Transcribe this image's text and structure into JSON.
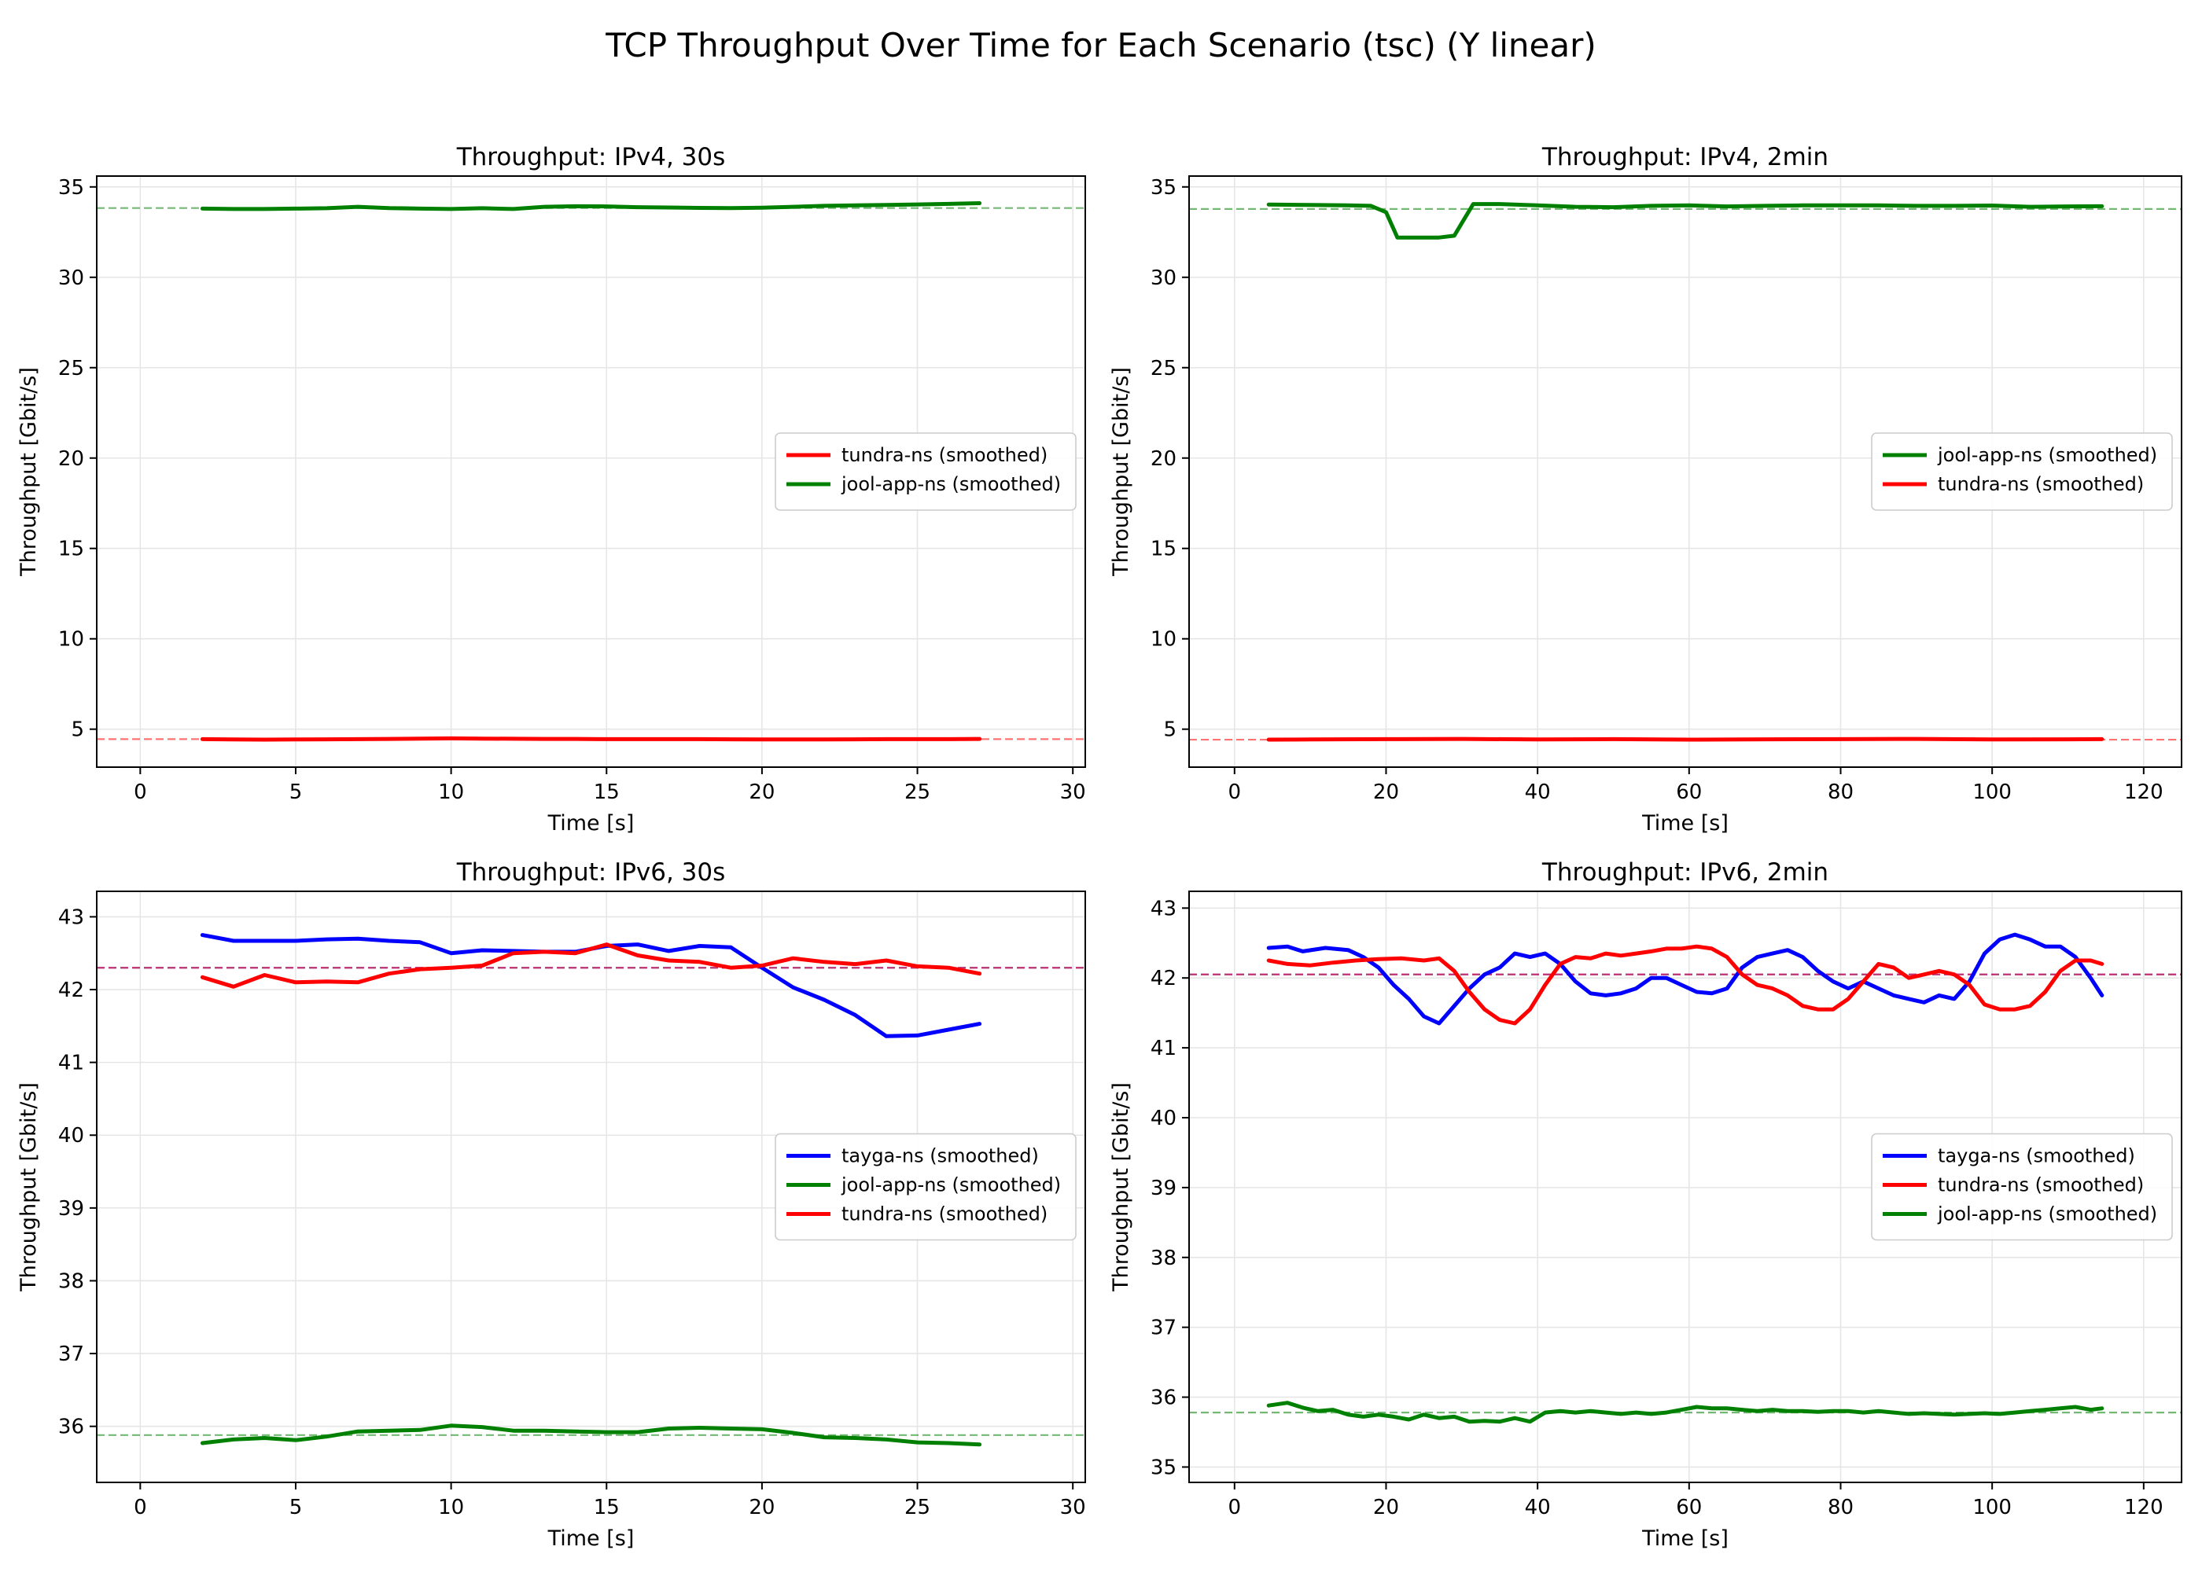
{
  "title": "TCP Throughput Over Time for Each Scenario (tsc) (Y linear)",
  "colors": {
    "tayga-ns": "#0000ff",
    "jool-app-ns": "#008000",
    "tundra-ns": "#ff0000"
  },
  "chart_data": [
    {
      "type": "line",
      "title": "Throughput: IPv4, 30s",
      "xlabel": "Time [s]",
      "ylabel": "Throughput [Gbit/s]",
      "xlim": [
        -1.4,
        30.4
      ],
      "ylim": [
        2.9,
        35.6
      ],
      "xticks": [
        0,
        5,
        10,
        15,
        20,
        25,
        30
      ],
      "yticks": [
        5,
        10,
        15,
        20,
        25,
        30,
        35
      ],
      "grid": true,
      "legend_position": "center-right",
      "series": [
        {
          "name": "tundra-ns (smoothed)",
          "color": "#ff0000",
          "mean": 4.45,
          "x": [
            2,
            3,
            4,
            5,
            6,
            7,
            8,
            9,
            10,
            11,
            12,
            13,
            14,
            15,
            16,
            17,
            18,
            19,
            20,
            21,
            22,
            23,
            24,
            25,
            26,
            27
          ],
          "values": [
            4.45,
            4.43,
            4.42,
            4.43,
            4.44,
            4.45,
            4.46,
            4.48,
            4.49,
            4.48,
            4.47,
            4.46,
            4.46,
            4.45,
            4.45,
            4.45,
            4.45,
            4.44,
            4.43,
            4.43,
            4.43,
            4.44,
            4.45,
            4.45,
            4.45,
            4.46
          ]
        },
        {
          "name": "jool-app-ns (smoothed)",
          "color": "#008000",
          "mean": 33.83,
          "x": [
            2,
            3,
            4,
            5,
            6,
            7,
            8,
            9,
            10,
            11,
            12,
            13,
            14,
            15,
            16,
            17,
            18,
            19,
            20,
            21,
            22,
            23,
            24,
            25,
            26,
            27
          ],
          "values": [
            33.8,
            33.78,
            33.78,
            33.8,
            33.82,
            33.9,
            33.83,
            33.8,
            33.78,
            33.82,
            33.78,
            33.9,
            33.93,
            33.92,
            33.88,
            33.86,
            33.84,
            33.83,
            33.85,
            33.9,
            33.95,
            33.98,
            34.0,
            34.03,
            34.06,
            34.1
          ]
        }
      ]
    },
    {
      "type": "line",
      "title": "Throughput: IPv4, 2min",
      "xlabel": "Time [s]",
      "ylabel": "Throughput [Gbit/s]",
      "xlim": [
        -6,
        125
      ],
      "ylim": [
        2.9,
        35.6
      ],
      "xticks": [
        0,
        20,
        40,
        60,
        80,
        100,
        120
      ],
      "yticks": [
        5,
        10,
        15,
        20,
        25,
        30,
        35
      ],
      "grid": true,
      "legend_position": "center-right",
      "series": [
        {
          "name": "jool-app-ns (smoothed)",
          "color": "#008000",
          "mean": 33.78,
          "x": [
            4.5,
            10,
            15,
            18,
            20,
            21.5,
            24,
            27,
            29,
            30,
            31.5,
            35,
            40,
            45,
            50,
            55,
            60,
            65,
            70,
            75,
            80,
            85,
            90,
            95,
            100,
            105,
            110,
            114.5
          ],
          "values": [
            34.02,
            34.0,
            33.98,
            33.95,
            33.6,
            32.2,
            32.2,
            32.2,
            32.3,
            33.0,
            34.05,
            34.05,
            33.98,
            33.9,
            33.88,
            33.95,
            33.98,
            33.92,
            33.95,
            33.98,
            33.98,
            33.98,
            33.95,
            33.95,
            33.97,
            33.9,
            33.92,
            33.93
          ]
        },
        {
          "name": "tundra-ns (smoothed)",
          "color": "#ff0000",
          "mean": 4.42,
          "x": [
            4.5,
            10,
            20,
            30,
            40,
            50,
            60,
            70,
            80,
            90,
            100,
            110,
            114.5
          ],
          "values": [
            4.42,
            4.43,
            4.45,
            4.46,
            4.43,
            4.45,
            4.42,
            4.44,
            4.45,
            4.46,
            4.43,
            4.44,
            4.45
          ]
        }
      ]
    },
    {
      "type": "line",
      "title": "Throughput: IPv6, 30s",
      "xlabel": "Time [s]",
      "ylabel": "Throughput [Gbit/s]",
      "xlim": [
        -1.4,
        30.4
      ],
      "ylim": [
        35.23,
        43.35
      ],
      "xticks": [
        0,
        5,
        10,
        15,
        20,
        25,
        30
      ],
      "yticks": [
        36,
        37,
        38,
        39,
        40,
        41,
        42,
        43
      ],
      "grid": true,
      "legend_position": "center-right",
      "series": [
        {
          "name": "tayga-ns (smoothed)",
          "color": "#0000ff",
          "mean": 42.3,
          "x": [
            2,
            3,
            4,
            5,
            6,
            7,
            8,
            9,
            10,
            11,
            12,
            13,
            14,
            15,
            16,
            17,
            18,
            19,
            20,
            21,
            22,
            23,
            24,
            25,
            26,
            27
          ],
          "values": [
            42.75,
            42.67,
            42.67,
            42.67,
            42.69,
            42.7,
            42.67,
            42.65,
            42.5,
            42.54,
            42.53,
            42.52,
            42.52,
            42.6,
            42.62,
            42.53,
            42.6,
            42.58,
            42.3,
            42.03,
            41.86,
            41.65,
            41.36,
            41.37,
            41.45,
            41.53
          ]
        },
        {
          "name": "jool-app-ns (smoothed)",
          "color": "#008000",
          "mean": 35.88,
          "x": [
            2,
            3,
            4,
            5,
            6,
            7,
            8,
            9,
            10,
            11,
            12,
            13,
            14,
            15,
            16,
            17,
            18,
            19,
            20,
            21,
            22,
            23,
            24,
            25,
            26,
            27
          ],
          "values": [
            35.77,
            35.82,
            35.84,
            35.81,
            35.86,
            35.93,
            35.94,
            35.95,
            36.01,
            35.99,
            35.94,
            35.94,
            35.93,
            35.92,
            35.92,
            35.97,
            35.98,
            35.97,
            35.96,
            35.91,
            35.85,
            35.84,
            35.82,
            35.78,
            35.77,
            35.75
          ]
        },
        {
          "name": "tundra-ns (smoothed)",
          "color": "#ff0000",
          "mean": 42.3,
          "x": [
            2,
            3,
            4,
            5,
            6,
            7,
            8,
            9,
            10,
            11,
            12,
            13,
            14,
            15,
            16,
            17,
            18,
            19,
            20,
            21,
            22,
            23,
            24,
            25,
            26,
            27
          ],
          "values": [
            42.17,
            42.04,
            42.2,
            42.1,
            42.11,
            42.1,
            42.22,
            42.28,
            42.3,
            42.33,
            42.5,
            42.52,
            42.5,
            42.62,
            42.47,
            42.4,
            42.38,
            42.3,
            42.33,
            42.43,
            42.38,
            42.35,
            42.4,
            42.32,
            42.3,
            42.22
          ]
        }
      ]
    },
    {
      "type": "line",
      "title": "Throughput: IPv6, 2min",
      "xlabel": "Time [s]",
      "ylabel": "Throughput [Gbit/s]",
      "xlim": [
        -6,
        125
      ],
      "ylim": [
        34.78,
        43.24
      ],
      "xticks": [
        0,
        20,
        40,
        60,
        80,
        100,
        120
      ],
      "yticks": [
        35,
        36,
        37,
        38,
        39,
        40,
        41,
        42,
        43
      ],
      "grid": true,
      "legend_position": "center-right",
      "series": [
        {
          "name": "tayga-ns (smoothed)",
          "color": "#0000ff",
          "mean": 42.05,
          "x": [
            4.5,
            7,
            9,
            12,
            15,
            17,
            19,
            21,
            23,
            25,
            27,
            29,
            31,
            33,
            35,
            37,
            39,
            41,
            43,
            45,
            47,
            49,
            51,
            53,
            55,
            57,
            59,
            61,
            63,
            65,
            67,
            69,
            71,
            73,
            75,
            77,
            79,
            81,
            83,
            85,
            87,
            89,
            91,
            93,
            95,
            97,
            99,
            101,
            103,
            105,
            107,
            109,
            111,
            113,
            114.5
          ],
          "values": [
            42.43,
            42.45,
            42.38,
            42.43,
            42.4,
            42.3,
            42.15,
            41.9,
            41.7,
            41.45,
            41.35,
            41.6,
            41.85,
            42.05,
            42.15,
            42.35,
            42.3,
            42.35,
            42.2,
            41.95,
            41.78,
            41.75,
            41.78,
            41.85,
            42.0,
            42.0,
            41.9,
            41.8,
            41.78,
            41.85,
            42.15,
            42.3,
            42.35,
            42.4,
            42.3,
            42.1,
            41.95,
            41.85,
            41.95,
            41.85,
            41.75,
            41.7,
            41.65,
            41.75,
            41.7,
            41.95,
            42.35,
            42.55,
            42.62,
            42.55,
            42.45,
            42.45,
            42.3,
            42.0,
            41.75
          ]
        },
        {
          "name": "tundra-ns (smoothed)",
          "color": "#ff0000",
          "mean": 42.05,
          "x": [
            4.5,
            7,
            10,
            13,
            16,
            19,
            22,
            25,
            27,
            29,
            31,
            33,
            35,
            37,
            39,
            41,
            43,
            45,
            47,
            49,
            51,
            53,
            55,
            57,
            59,
            61,
            63,
            65,
            67,
            69,
            71,
            73,
            75,
            77,
            79,
            81,
            83,
            85,
            87,
            89,
            91,
            93,
            95,
            97,
            99,
            101,
            103,
            105,
            107,
            109,
            111,
            113,
            114.5
          ],
          "values": [
            42.25,
            42.2,
            42.18,
            42.22,
            42.25,
            42.27,
            42.28,
            42.25,
            42.28,
            42.1,
            41.8,
            41.55,
            41.4,
            41.35,
            41.55,
            41.9,
            42.2,
            42.3,
            42.28,
            42.35,
            42.32,
            42.35,
            42.38,
            42.42,
            42.42,
            42.45,
            42.42,
            42.3,
            42.05,
            41.9,
            41.85,
            41.75,
            41.6,
            41.55,
            41.55,
            41.7,
            41.95,
            42.2,
            42.15,
            42.0,
            42.05,
            42.1,
            42.05,
            41.9,
            41.62,
            41.55,
            41.55,
            41.6,
            41.8,
            42.1,
            42.25,
            42.25,
            42.2
          ]
        },
        {
          "name": "jool-app-ns (smoothed)",
          "color": "#008000",
          "mean": 35.78,
          "x": [
            4.5,
            7,
            9,
            11,
            13,
            15,
            17,
            19,
            21,
            23,
            25,
            27,
            29,
            31,
            33,
            35,
            37,
            39,
            41,
            43,
            45,
            47,
            49,
            51,
            53,
            55,
            57,
            59,
            61,
            63,
            65,
            67,
            69,
            71,
            73,
            75,
            77,
            79,
            81,
            83,
            85,
            87,
            89,
            91,
            93,
            95,
            97,
            99,
            101,
            103,
            105,
            107,
            109,
            111,
            113,
            114.5
          ],
          "values": [
            35.88,
            35.92,
            35.85,
            35.8,
            35.82,
            35.75,
            35.72,
            35.75,
            35.72,
            35.68,
            35.75,
            35.7,
            35.72,
            35.65,
            35.66,
            35.65,
            35.7,
            35.65,
            35.78,
            35.8,
            35.78,
            35.8,
            35.78,
            35.76,
            35.78,
            35.76,
            35.78,
            35.82,
            35.86,
            35.84,
            35.84,
            35.82,
            35.8,
            35.82,
            35.8,
            35.8,
            35.79,
            35.8,
            35.8,
            35.78,
            35.8,
            35.78,
            35.76,
            35.77,
            35.76,
            35.75,
            35.76,
            35.77,
            35.76,
            35.78,
            35.8,
            35.82,
            35.84,
            35.86,
            35.82,
            35.84
          ]
        }
      ]
    }
  ]
}
